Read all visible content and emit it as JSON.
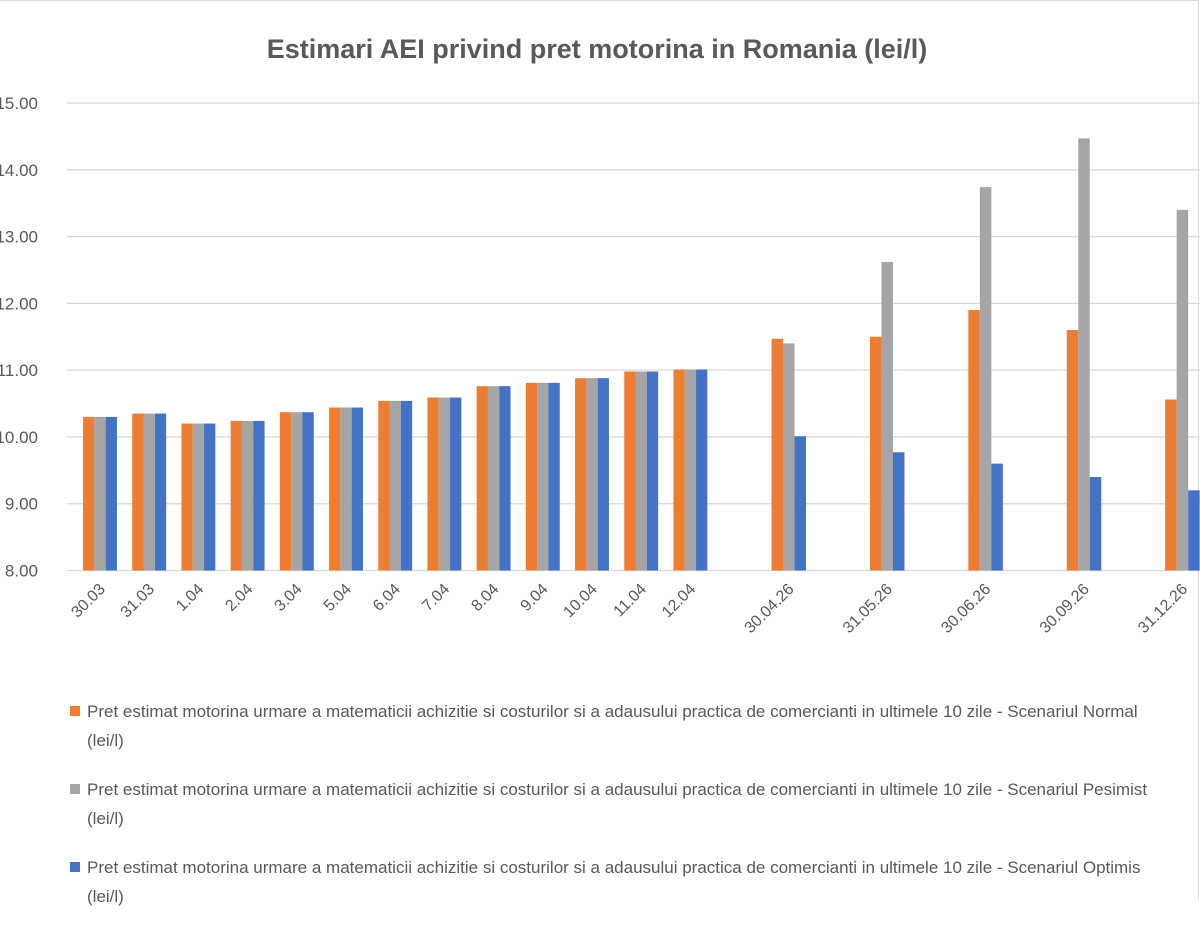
{
  "chart_data": {
    "type": "bar",
    "title": "Estimari AEI privind pret motorina in Romania (lei/l)",
    "xlabel": "",
    "ylabel": "",
    "ylim": [
      8,
      15
    ],
    "yticks": [
      "8.00",
      "9.00",
      "10.00",
      "11.00",
      "12.00",
      "13.00",
      "14.00",
      "15.00"
    ],
    "grid": true,
    "legend_position": "bottom",
    "categories": [
      "30.03",
      "31.03",
      "1.04",
      "2.04",
      "3.04",
      "5.04",
      "6.04",
      "7.04",
      "8.04",
      "9.04",
      "10.04",
      "11.04",
      "12.04",
      "30.04.26",
      "31.05.26",
      "30.06.26",
      "30.09.26",
      "31.12.26"
    ],
    "series": [
      {
        "name": "Pret estimat motorina urmare a matematicii achizitie si costurilor si a adausului practica de comercianti in ultimele 10 zile - Scenariul Normal (lei/l)",
        "color": "#ED7D31",
        "values": [
          10.3,
          10.35,
          10.2,
          10.24,
          10.37,
          10.44,
          10.54,
          10.59,
          10.76,
          10.81,
          10.88,
          10.98,
          11.01,
          11.47,
          11.5,
          11.9,
          11.6,
          10.56
        ]
      },
      {
        "name": "Pret estimat motorina urmare a matematicii achizitie si costurilor si a adausului practica de comercianti in ultimele 10 zile - Scenariul Pesimist (lei/l)",
        "color": "#A5A5A5",
        "values": [
          10.3,
          10.35,
          10.2,
          10.24,
          10.37,
          10.44,
          10.54,
          10.59,
          10.76,
          10.81,
          10.88,
          10.98,
          11.01,
          11.4,
          12.62,
          13.74,
          14.47,
          13.4
        ]
      },
      {
        "name": "Pret estimat motorina urmare a matematicii achizitie si costurilor si a adausului practica de comercianti in ultimele 10 zile - Scenariul Optimis (lei/l)",
        "color": "#4472C4",
        "values": [
          10.3,
          10.35,
          10.2,
          10.24,
          10.37,
          10.44,
          10.54,
          10.59,
          10.76,
          10.81,
          10.88,
          10.98,
          11.01,
          10.01,
          9.77,
          9.6,
          9.4,
          9.2
        ]
      }
    ]
  }
}
